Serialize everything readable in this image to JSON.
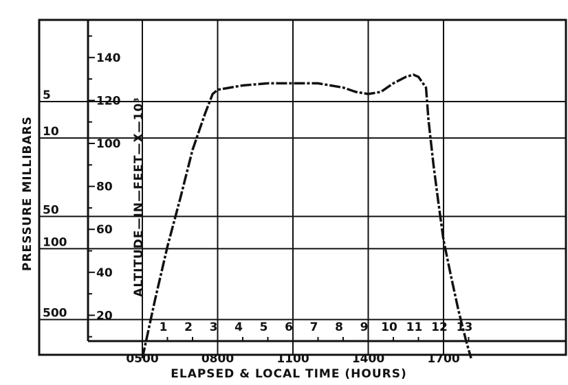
{
  "chart_data": {
    "type": "line",
    "xlabel": "ELAPSED & LOCAL TIME (HOURS)",
    "ylabel": "ALTITUDE—IN—FEET—X—10³",
    "pressure_axis_label": "PRESSURE MILLIBARS",
    "ylim": [
      0,
      155
    ],
    "xlim": [
      -4,
      17
    ],
    "y_ticks": [
      "20",
      "40",
      "60",
      "80",
      "100",
      "120",
      "140"
    ],
    "pressure_ticks": [
      {
        "label": "5",
        "altitude": 119.5
      },
      {
        "label": "10",
        "altitude": 102.5
      },
      {
        "label": "50",
        "altitude": 66
      },
      {
        "label": "100",
        "altitude": 51
      },
      {
        "label": "500",
        "altitude": 18
      }
    ],
    "local_time_ticks": [
      {
        "label": "0500",
        "hour": 0
      },
      {
        "label": "0800",
        "hour": 3
      },
      {
        "label": "1100",
        "hour": 6
      },
      {
        "label": "1400",
        "hour": 9
      },
      {
        "label": "1700",
        "hour": 12
      }
    ],
    "elapsed_hour_labels": [
      "1",
      "2",
      "3",
      "4",
      "5",
      "6",
      "7",
      "8",
      "9",
      "10",
      "11",
      "12",
      "13"
    ],
    "series": [
      {
        "x": [
          0.0,
          0.5,
          1.0,
          1.5,
          2.0,
          2.5,
          2.8,
          3.0,
          3.5,
          4.0,
          5.0,
          6.0,
          7.0,
          7.5,
          8.0,
          8.5,
          9.0,
          9.5,
          10.0,
          10.5,
          10.8,
          11.0,
          11.3,
          11.4,
          11.6,
          11.8,
          12.0,
          12.3,
          12.6,
          12.9,
          13.1
        ],
        "y": [
          0,
          27,
          52,
          74,
          97,
          114,
          123,
          125,
          126,
          127,
          128,
          128,
          128,
          127,
          126,
          124,
          123,
          124,
          128,
          131,
          132,
          131,
          126,
          111,
          90,
          72,
          55,
          38,
          22,
          8,
          0
        ]
      }
    ],
    "grid": true
  }
}
